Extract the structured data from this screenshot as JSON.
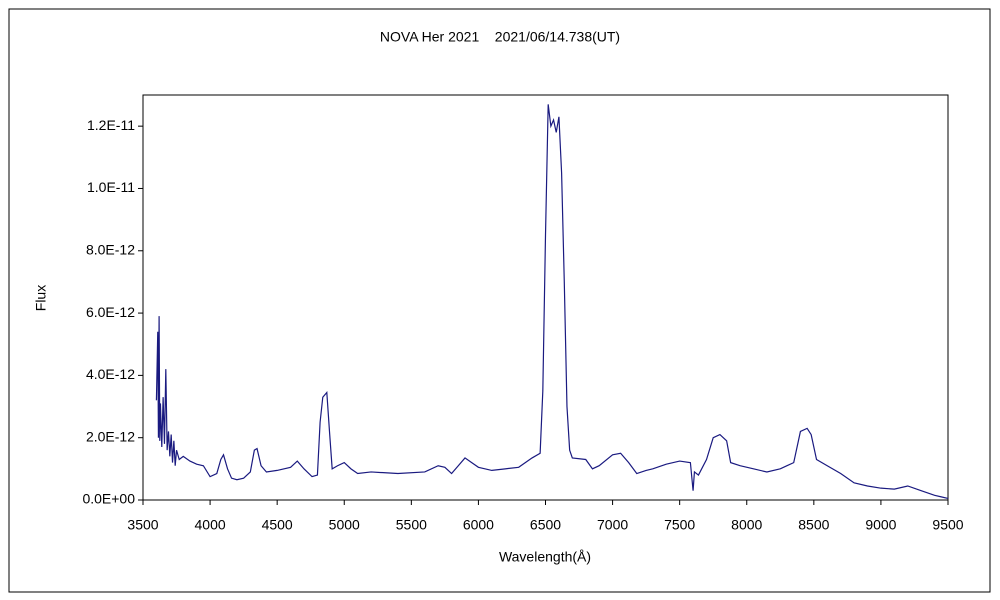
{
  "chart_data": {
    "type": "line",
    "title": "NOVA Her 2021    2021/06/14.738(UT)",
    "x_label": "Wavelength(Å)",
    "y_label": "Flux",
    "color": "#1a1a80",
    "xlim": [
      3500,
      9500
    ],
    "xticks": [
      3500,
      4000,
      4500,
      5000,
      5500,
      6000,
      6500,
      7000,
      7500,
      8000,
      8500,
      9000,
      9500
    ],
    "ylim": [
      0,
      1.3e-11
    ],
    "yticks": [
      {
        "value": 0,
        "label": "0.0E+00"
      },
      {
        "value": 2e-12,
        "label": "2.0E-12"
      },
      {
        "value": 4e-12,
        "label": "4.0E-12"
      },
      {
        "value": 6e-12,
        "label": "6.0E-12"
      },
      {
        "value": 8e-12,
        "label": "8.0E-12"
      },
      {
        "value": 1e-11,
        "label": "1.0E-11"
      },
      {
        "value": 1.2e-11,
        "label": "1.2E-11"
      }
    ],
    "grid": false,
    "x": [
      3600,
      3610,
      3615,
      3620,
      3625,
      3630,
      3640,
      3650,
      3660,
      3670,
      3680,
      3690,
      3700,
      3710,
      3720,
      3730,
      3740,
      3750,
      3770,
      3800,
      3850,
      3900,
      3950,
      4000,
      4050,
      4080,
      4100,
      4130,
      4160,
      4200,
      4250,
      4300,
      4330,
      4350,
      4380,
      4420,
      4500,
      4600,
      4650,
      4700,
      4760,
      4800,
      4820,
      4840,
      4870,
      4890,
      4910,
      4950,
      5000,
      5050,
      5100,
      5200,
      5400,
      5600,
      5700,
      5750,
      5800,
      5850,
      5900,
      5950,
      6000,
      6100,
      6200,
      6300,
      6400,
      6460,
      6480,
      6500,
      6520,
      6540,
      6560,
      6580,
      6600,
      6620,
      6640,
      6660,
      6680,
      6700,
      6800,
      6850,
      6900,
      7000,
      7060,
      7120,
      7180,
      7250,
      7300,
      7400,
      7500,
      7580,
      7600,
      7610,
      7640,
      7700,
      7750,
      7800,
      7850,
      7880,
      7950,
      8050,
      8150,
      8250,
      8300,
      8350,
      8400,
      8450,
      8480,
      8520,
      8600,
      8700,
      8800,
      8900,
      9000,
      9100,
      9200,
      9300,
      9400,
      9450,
      9500
    ],
    "values": [
      3.2e-12,
      5.4e-12,
      2e-12,
      5.9e-12,
      1.9e-12,
      3.1e-12,
      1.7e-12,
      3.3e-12,
      1.8e-12,
      4.2e-12,
      1.6e-12,
      2.2e-12,
      1.4e-12,
      2.1e-12,
      1.2e-12,
      1.9e-12,
      1.1e-12,
      1.6e-12,
      1.3e-12,
      1.4e-12,
      1.25e-12,
      1.15e-12,
      1.1e-12,
      7.5e-13,
      8.5e-13,
      1.3e-12,
      1.45e-12,
      1e-12,
      7e-13,
      6.5e-13,
      7e-13,
      9e-13,
      1.6e-12,
      1.65e-12,
      1.1e-12,
      9e-13,
      9.5e-13,
      1.05e-12,
      1.25e-12,
      1e-12,
      7.5e-13,
      8e-13,
      2.5e-12,
      3.3e-12,
      3.45e-12,
      2.2e-12,
      1e-12,
      1.1e-12,
      1.2e-12,
      1e-12,
      8.5e-13,
      9e-13,
      8.5e-13,
      9e-13,
      1.1e-12,
      1.05e-12,
      8.5e-13,
      1.1e-12,
      1.35e-12,
      1.2e-12,
      1.05e-12,
      9.5e-13,
      1e-12,
      1.05e-12,
      1.35e-12,
      1.5e-12,
      3.5e-12,
      8.5e-12,
      1.27e-11,
      1.2e-11,
      1.22e-11,
      1.18e-11,
      1.23e-11,
      1.05e-11,
      7e-12,
      3e-12,
      1.6e-12,
      1.35e-12,
      1.3e-12,
      1e-12,
      1.1e-12,
      1.45e-12,
      1.5e-12,
      1.2e-12,
      8.5e-13,
      9.5e-13,
      1e-12,
      1.15e-12,
      1.25e-12,
      1.2e-12,
      3e-13,
      9e-13,
      8e-13,
      1.3e-12,
      2e-12,
      2.1e-12,
      1.9e-12,
      1.2e-12,
      1.1e-12,
      1e-12,
      9e-13,
      1e-12,
      1.1e-12,
      1.2e-12,
      2.2e-12,
      2.3e-12,
      2.1e-12,
      1.3e-12,
      1.1e-12,
      8.5e-13,
      5.5e-13,
      4.5e-13,
      3.8e-13,
      3.5e-13,
      4.5e-13,
      3e-13,
      1.5e-13,
      1e-13,
      5e-14
    ]
  }
}
